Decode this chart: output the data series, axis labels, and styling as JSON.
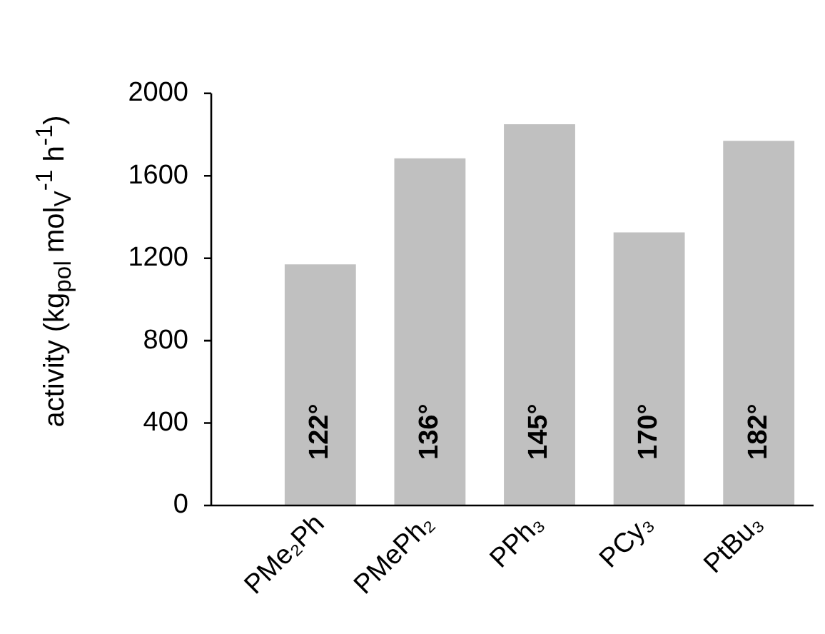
{
  "chart_data": {
    "type": "bar",
    "ylabel": "activity (kg$_{pol}$ mol$_{V}$$^{-1}$ h$^{-1}$)",
    "categories": [
      "PMe₂Ph",
      "PMePh₂",
      "PPh₃",
      "PCy₃",
      "PtBu₃"
    ],
    "values": [
      1170,
      1685,
      1850,
      1325,
      1770
    ],
    "color": "#c0c0c0",
    "ylim": [
      0,
      2000
    ],
    "yticks": [
      0,
      400,
      800,
      1200,
      1600,
      2000
    ],
    "annotations": [
      "122°",
      "136°",
      "145°",
      "170°",
      "182°"
    ]
  }
}
